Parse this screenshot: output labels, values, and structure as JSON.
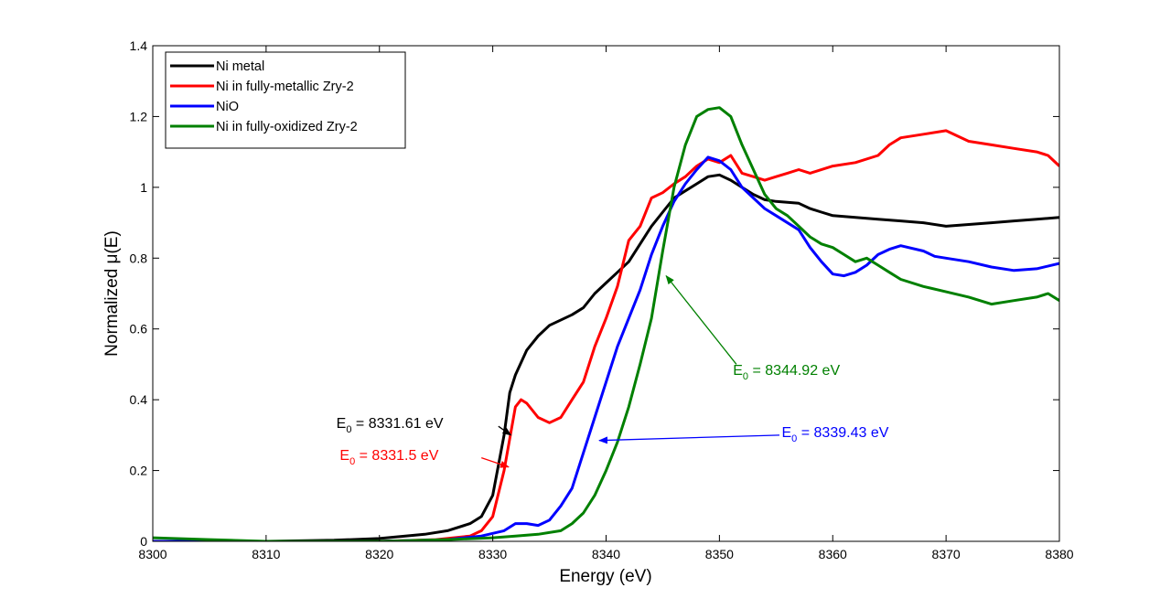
{
  "chart_data": {
    "type": "line",
    "xlabel": "Energy (eV)",
    "ylabel": "Normalized μ(E)",
    "xlim": [
      8300,
      8380
    ],
    "ylim": [
      0,
      1.4
    ],
    "xticks": [
      8300,
      8310,
      8320,
      8330,
      8340,
      8350,
      8360,
      8370,
      8380
    ],
    "yticks": [
      0,
      0.2,
      0.4,
      0.6,
      0.8,
      1,
      1.2,
      1.4
    ],
    "xtick_labels": [
      "8300",
      "8310",
      "8320",
      "8330",
      "8340",
      "8350",
      "8360",
      "8370",
      "8380"
    ],
    "ytick_labels": [
      "0",
      "0.2",
      "0.4",
      "0.6",
      "0.8",
      "1",
      "1.2",
      "1.4"
    ],
    "grid": false,
    "legend_position": "top-left",
    "series": [
      {
        "name": "Ni metal",
        "color": "#000000",
        "points": [
          [
            8300,
            0.0
          ],
          [
            8310,
            0.0
          ],
          [
            8316,
            0.003
          ],
          [
            8320,
            0.008
          ],
          [
            8324,
            0.02
          ],
          [
            8326,
            0.03
          ],
          [
            8328,
            0.05
          ],
          [
            8329,
            0.07
          ],
          [
            8330,
            0.13
          ],
          [
            8331,
            0.3
          ],
          [
            8331.5,
            0.42
          ],
          [
            8332,
            0.47
          ],
          [
            8333,
            0.54
          ],
          [
            8334,
            0.58
          ],
          [
            8335,
            0.61
          ],
          [
            8337,
            0.64
          ],
          [
            8338,
            0.66
          ],
          [
            8339,
            0.7
          ],
          [
            8340,
            0.73
          ],
          [
            8341,
            0.76
          ],
          [
            8342,
            0.79
          ],
          [
            8343,
            0.84
          ],
          [
            8344,
            0.89
          ],
          [
            8345,
            0.93
          ],
          [
            8346,
            0.97
          ],
          [
            8347,
            0.99
          ],
          [
            8348,
            1.01
          ],
          [
            8349,
            1.03
          ],
          [
            8350,
            1.035
          ],
          [
            8351,
            1.02
          ],
          [
            8352,
            1.0
          ],
          [
            8353,
            0.98
          ],
          [
            8354,
            0.965
          ],
          [
            8355,
            0.96
          ],
          [
            8357,
            0.955
          ],
          [
            8358,
            0.94
          ],
          [
            8359,
            0.93
          ],
          [
            8360,
            0.92
          ],
          [
            8362,
            0.915
          ],
          [
            8364,
            0.91
          ],
          [
            8366,
            0.905
          ],
          [
            8368,
            0.9
          ],
          [
            8370,
            0.89
          ],
          [
            8372,
            0.895
          ],
          [
            8374,
            0.9
          ],
          [
            8376,
            0.905
          ],
          [
            8378,
            0.91
          ],
          [
            8380,
            0.915
          ]
        ]
      },
      {
        "name": "Ni in fully-metallic Zry-2",
        "color": "#ff0000",
        "points": [
          [
            8300,
            0.0
          ],
          [
            8320,
            0.0
          ],
          [
            8325,
            0.005
          ],
          [
            8328,
            0.015
          ],
          [
            8329,
            0.03
          ],
          [
            8330,
            0.07
          ],
          [
            8331,
            0.2
          ],
          [
            8332,
            0.38
          ],
          [
            8332.5,
            0.4
          ],
          [
            8333,
            0.39
          ],
          [
            8334,
            0.35
          ],
          [
            8335,
            0.335
          ],
          [
            8336,
            0.35
          ],
          [
            8337,
            0.4
          ],
          [
            8338,
            0.45
          ],
          [
            8339,
            0.55
          ],
          [
            8340,
            0.63
          ],
          [
            8341,
            0.72
          ],
          [
            8342,
            0.85
          ],
          [
            8343,
            0.89
          ],
          [
            8344,
            0.97
          ],
          [
            8345,
            0.985
          ],
          [
            8346,
            1.01
          ],
          [
            8347,
            1.03
          ],
          [
            8348,
            1.06
          ],
          [
            8349,
            1.08
          ],
          [
            8350,
            1.07
          ],
          [
            8351,
            1.09
          ],
          [
            8352,
            1.04
          ],
          [
            8353,
            1.03
          ],
          [
            8354,
            1.02
          ],
          [
            8355,
            1.03
          ],
          [
            8356,
            1.04
          ],
          [
            8357,
            1.05
          ],
          [
            8358,
            1.04
          ],
          [
            8360,
            1.06
          ],
          [
            8362,
            1.07
          ],
          [
            8364,
            1.09
          ],
          [
            8365,
            1.12
          ],
          [
            8366,
            1.14
          ],
          [
            8368,
            1.15
          ],
          [
            8370,
            1.16
          ],
          [
            8372,
            1.13
          ],
          [
            8374,
            1.12
          ],
          [
            8376,
            1.11
          ],
          [
            8378,
            1.1
          ],
          [
            8379,
            1.09
          ],
          [
            8380,
            1.06
          ]
        ]
      },
      {
        "name": "NiO",
        "color": "#0000ff",
        "points": [
          [
            8300,
            0.0
          ],
          [
            8320,
            0.0
          ],
          [
            8326,
            0.005
          ],
          [
            8329,
            0.015
          ],
          [
            8331,
            0.03
          ],
          [
            8332,
            0.05
          ],
          [
            8333,
            0.05
          ],
          [
            8334,
            0.045
          ],
          [
            8335,
            0.06
          ],
          [
            8336,
            0.1
          ],
          [
            8337,
            0.15
          ],
          [
            8338,
            0.25
          ],
          [
            8339,
            0.35
          ],
          [
            8340,
            0.45
          ],
          [
            8341,
            0.55
          ],
          [
            8342,
            0.63
          ],
          [
            8343,
            0.71
          ],
          [
            8344,
            0.81
          ],
          [
            8345,
            0.89
          ],
          [
            8346,
            0.96
          ],
          [
            8347,
            1.01
          ],
          [
            8348,
            1.05
          ],
          [
            8349,
            1.085
          ],
          [
            8350,
            1.075
          ],
          [
            8351,
            1.05
          ],
          [
            8352,
            1.0
          ],
          [
            8353,
            0.97
          ],
          [
            8354,
            0.94
          ],
          [
            8355,
            0.92
          ],
          [
            8357,
            0.88
          ],
          [
            8358,
            0.83
          ],
          [
            8359,
            0.79
          ],
          [
            8360,
            0.755
          ],
          [
            8361,
            0.75
          ],
          [
            8362,
            0.76
          ],
          [
            8363,
            0.78
          ],
          [
            8364,
            0.81
          ],
          [
            8365,
            0.825
          ],
          [
            8366,
            0.835
          ],
          [
            8368,
            0.82
          ],
          [
            8369,
            0.805
          ],
          [
            8370,
            0.8
          ],
          [
            8372,
            0.79
          ],
          [
            8374,
            0.775
          ],
          [
            8376,
            0.765
          ],
          [
            8378,
            0.77
          ],
          [
            8380,
            0.785
          ]
        ]
      },
      {
        "name": "Ni in fully-oxidized Zry-2",
        "color": "#008000",
        "points": [
          [
            8300,
            0.01
          ],
          [
            8305,
            0.005
          ],
          [
            8310,
            0.0
          ],
          [
            8320,
            0.0
          ],
          [
            8326,
            0.005
          ],
          [
            8330,
            0.01
          ],
          [
            8332,
            0.015
          ],
          [
            8334,
            0.02
          ],
          [
            8336,
            0.03
          ],
          [
            8337,
            0.05
          ],
          [
            8338,
            0.08
          ],
          [
            8339,
            0.13
          ],
          [
            8340,
            0.2
          ],
          [
            8341,
            0.28
          ],
          [
            8342,
            0.38
          ],
          [
            8343,
            0.5
          ],
          [
            8344,
            0.63
          ],
          [
            8345,
            0.82
          ],
          [
            8346,
            1.0
          ],
          [
            8347,
            1.12
          ],
          [
            8348,
            1.2
          ],
          [
            8349,
            1.22
          ],
          [
            8350,
            1.225
          ],
          [
            8351,
            1.2
          ],
          [
            8352,
            1.12
          ],
          [
            8353,
            1.05
          ],
          [
            8354,
            0.98
          ],
          [
            8355,
            0.94
          ],
          [
            8356,
            0.92
          ],
          [
            8357,
            0.89
          ],
          [
            8358,
            0.86
          ],
          [
            8359,
            0.84
          ],
          [
            8360,
            0.83
          ],
          [
            8361,
            0.81
          ],
          [
            8362,
            0.79
          ],
          [
            8363,
            0.8
          ],
          [
            8364,
            0.78
          ],
          [
            8365,
            0.76
          ],
          [
            8366,
            0.74
          ],
          [
            8368,
            0.72
          ],
          [
            8370,
            0.705
          ],
          [
            8372,
            0.69
          ],
          [
            8374,
            0.67
          ],
          [
            8376,
            0.68
          ],
          [
            8378,
            0.69
          ],
          [
            8379,
            0.7
          ],
          [
            8380,
            0.68
          ]
        ]
      }
    ],
    "annotations": [
      {
        "prefix": "E",
        "sub": "0",
        "text": " = 8331.61 eV",
        "color": "#000000",
        "label_at": [
          8316.2,
          0.32
        ],
        "arrow_from": [
          8330.5,
          0.325
        ],
        "arrow_to": [
          8331.6,
          0.3
        ]
      },
      {
        "prefix": "E",
        "sub": "0",
        "text": " = 8331.5 eV",
        "color": "#ff0000",
        "label_at": [
          8316.5,
          0.23
        ],
        "arrow_from": [
          8329.0,
          0.236
        ],
        "arrow_to": [
          8331.4,
          0.21
        ]
      },
      {
        "prefix": "E",
        "sub": "0",
        "text": " = 8339.43 eV",
        "color": "#0000ff",
        "label_at": [
          8355.5,
          0.295
        ],
        "arrow_from": [
          8355.3,
          0.3
        ],
        "arrow_to": [
          8339.4,
          0.285
        ]
      },
      {
        "prefix": "E",
        "sub": "0",
        "text": " = 8344.92 eV",
        "color": "#008000",
        "label_at": [
          8351.2,
          0.47
        ],
        "arrow_from": [
          8351.5,
          0.5
        ],
        "arrow_to": [
          8345.3,
          0.75
        ]
      }
    ]
  }
}
